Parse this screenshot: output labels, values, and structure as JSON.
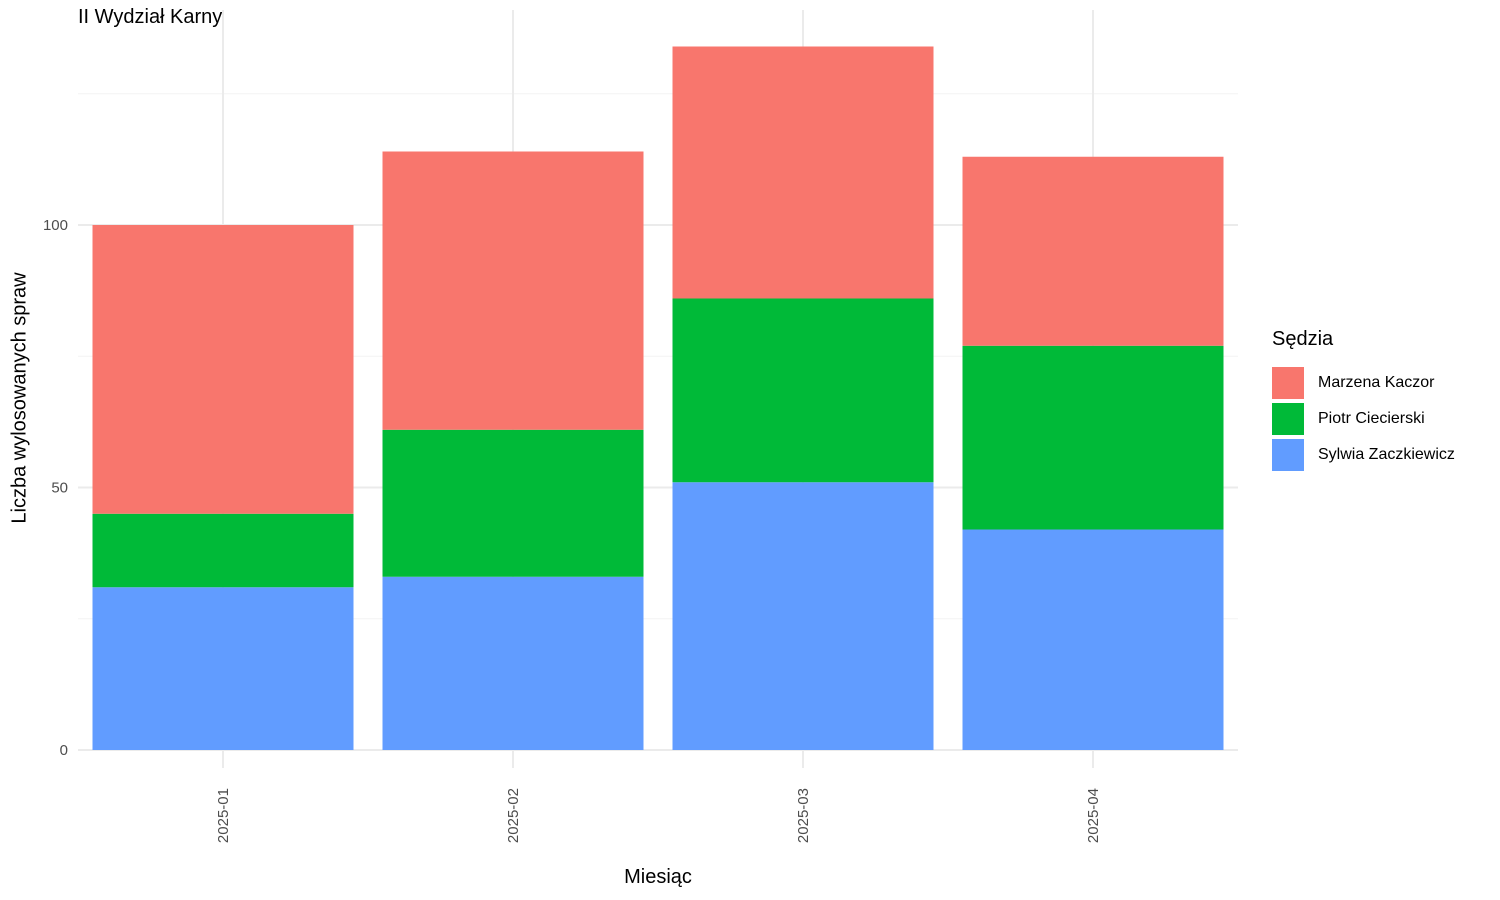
{
  "chart_data": {
    "type": "bar",
    "stacked": true,
    "title": "II Wydział Karny",
    "xlabel": "Miesiąc",
    "ylabel": "Liczba wylosowanych spraw",
    "categories": [
      "2025-01",
      "2025-02",
      "2025-03",
      "2025-04"
    ],
    "ylim": [
      0,
      140
    ],
    "yticks": [
      0,
      50,
      100
    ],
    "grid": true,
    "legend_title": "Sędzia",
    "legend_position": "right",
    "series": [
      {
        "name": "Sylwia Zaczkiewicz",
        "color": "#619CFF",
        "values": [
          31,
          33,
          51,
          42
        ]
      },
      {
        "name": "Piotr Ciecierski",
        "color": "#00BA38",
        "values": [
          14,
          28,
          35,
          35
        ]
      },
      {
        "name": "Marzena Kaczor",
        "color": "#F8766D",
        "values": [
          55,
          53,
          48,
          36
        ]
      }
    ],
    "legend_order": [
      "Marzena Kaczor",
      "Piotr Ciecierski",
      "Sylwia Zaczkiewicz"
    ]
  }
}
